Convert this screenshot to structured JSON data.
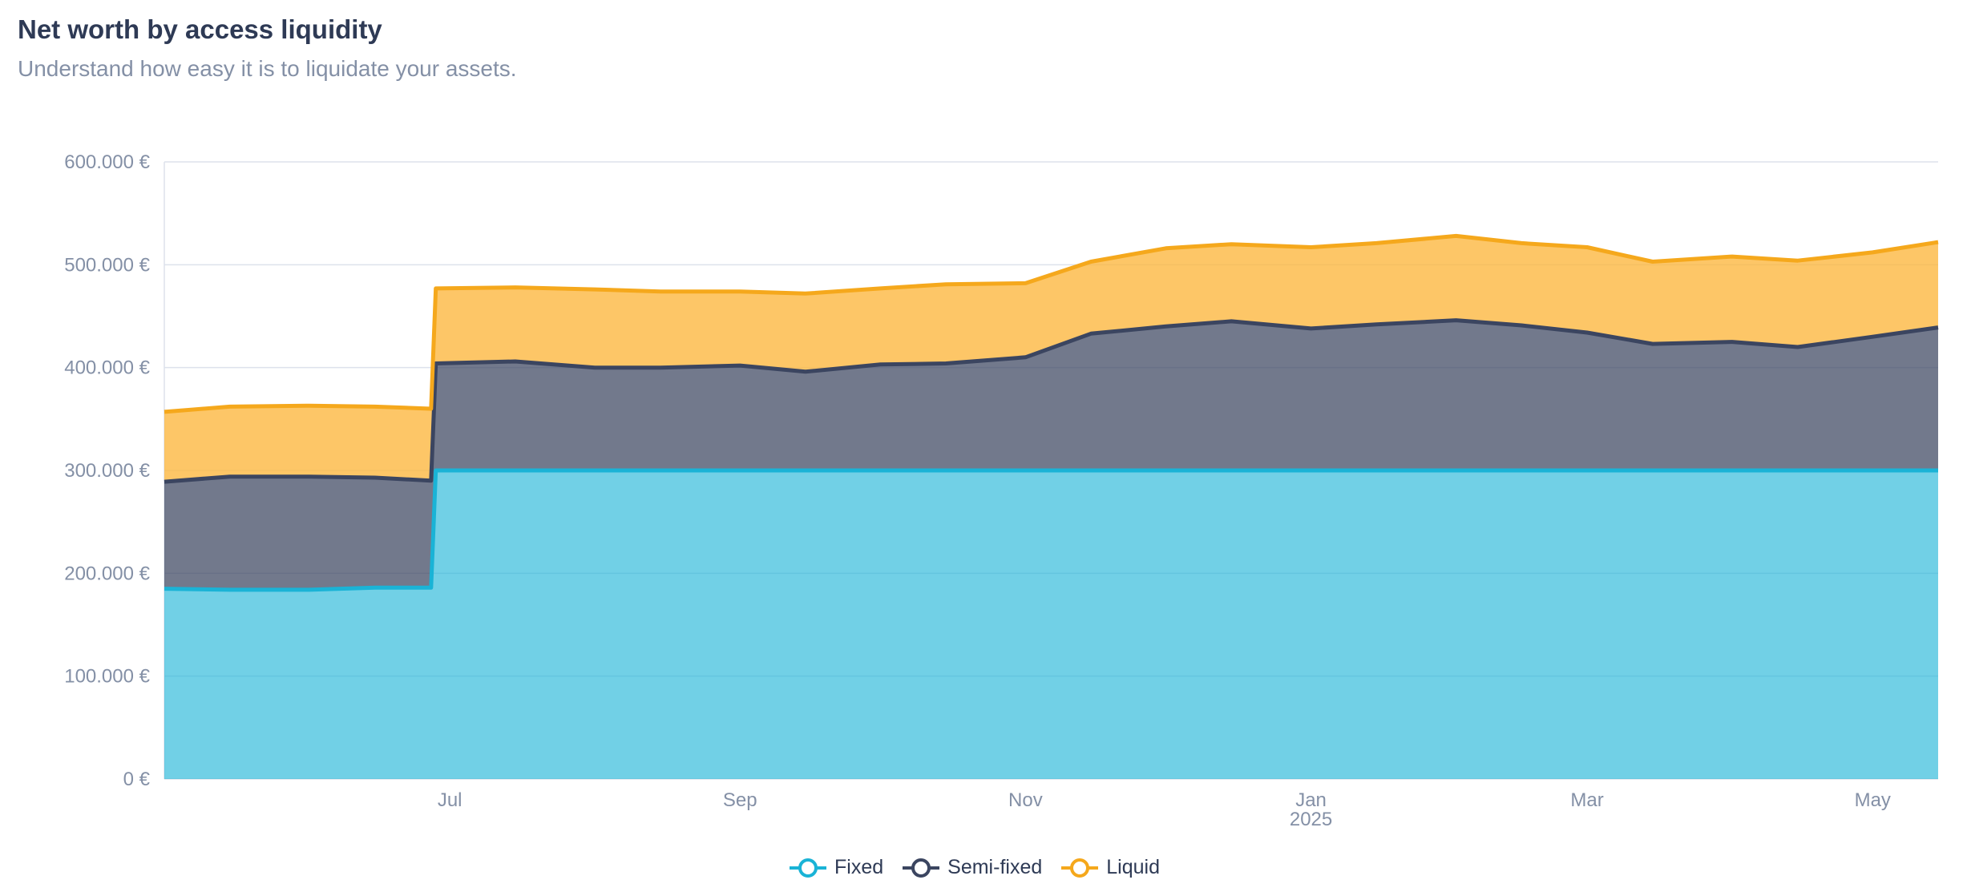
{
  "header": {
    "title": "Net worth by access liquidity",
    "subtitle": "Understand how easy it is to liquidate your assets."
  },
  "legend": [
    {
      "label": "Fixed",
      "color": "#1ab3d6"
    },
    {
      "label": "Semi-fixed",
      "color": "#3b4560"
    },
    {
      "label": "Liquid",
      "color": "#f5a81c"
    }
  ],
  "chart_data": {
    "type": "area",
    "stacked": true,
    "title": "Net worth by access liquidity",
    "x_range": [
      "2024-05-01",
      "2025-05-15"
    ],
    "x_ticks": [
      {
        "date": "2024-07-01",
        "label": "Jul",
        "sublabel": ""
      },
      {
        "date": "2024-09-01",
        "label": "Sep",
        "sublabel": ""
      },
      {
        "date": "2024-11-01",
        "label": "Nov",
        "sublabel": ""
      },
      {
        "date": "2025-01-01",
        "label": "Jan",
        "sublabel": "2025"
      },
      {
        "date": "2025-03-01",
        "label": "Mar",
        "sublabel": ""
      },
      {
        "date": "2025-05-01",
        "label": "May",
        "sublabel": ""
      }
    ],
    "ylim": [
      0,
      600000
    ],
    "y_ticks": [
      {
        "value": 0,
        "label": "0 €"
      },
      {
        "value": 100000,
        "label": "100.000 €"
      },
      {
        "value": 200000,
        "label": "200.000 €"
      },
      {
        "value": 300000,
        "label": "300.000 €"
      },
      {
        "value": 400000,
        "label": "400.000 €"
      },
      {
        "value": 500000,
        "label": "500.000 €"
      },
      {
        "value": 600000,
        "label": "600.000 €"
      }
    ],
    "grid": true,
    "legend_position": "bottom",
    "x": [
      "2024-05-01",
      "2024-05-15",
      "2024-06-01",
      "2024-06-15",
      "2024-06-27",
      "2024-06-28",
      "2024-07-15",
      "2024-08-01",
      "2024-08-15",
      "2024-09-01",
      "2024-09-15",
      "2024-10-01",
      "2024-10-15",
      "2024-11-01",
      "2024-11-15",
      "2024-12-01",
      "2024-12-15",
      "2025-01-01",
      "2025-01-15",
      "2025-02-01",
      "2025-02-15",
      "2025-03-01",
      "2025-03-15",
      "2025-04-01",
      "2025-04-15",
      "2025-05-01",
      "2025-05-15"
    ],
    "series": [
      {
        "name": "Fixed",
        "values": [
          185000,
          184000,
          184000,
          186000,
          186000,
          300000,
          300000,
          300000,
          300000,
          300000,
          300000,
          300000,
          300000,
          300000,
          300000,
          300000,
          300000,
          300000,
          300000,
          300000,
          300000,
          300000,
          300000,
          300000,
          300000,
          300000,
          300000
        ]
      },
      {
        "name": "Semi-fixed",
        "values": [
          104000,
          110000,
          110000,
          107000,
          104000,
          104000,
          106000,
          100000,
          100000,
          102000,
          96000,
          103000,
          104000,
          110000,
          133000,
          140000,
          145000,
          138000,
          142000,
          146000,
          141000,
          134000,
          123000,
          125000,
          120000,
          130000,
          139000
        ]
      },
      {
        "name": "Liquid",
        "values": [
          68000,
          68000,
          69000,
          69000,
          70000,
          73000,
          72000,
          76000,
          74000,
          72000,
          76000,
          74000,
          77000,
          72000,
          70000,
          76000,
          75000,
          79000,
          79000,
          82000,
          80000,
          83000,
          80000,
          83000,
          84000,
          82000,
          83000
        ]
      }
    ]
  }
}
